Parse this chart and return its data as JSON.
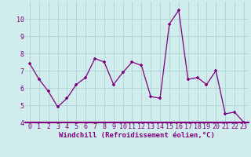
{
  "x": [
    0,
    1,
    2,
    3,
    4,
    5,
    6,
    7,
    8,
    9,
    10,
    11,
    12,
    13,
    14,
    15,
    16,
    17,
    18,
    19,
    20,
    21,
    22,
    23
  ],
  "y": [
    7.4,
    6.5,
    5.8,
    4.9,
    5.4,
    6.2,
    6.6,
    7.7,
    7.5,
    6.2,
    6.9,
    7.5,
    7.3,
    5.5,
    5.4,
    9.7,
    10.5,
    6.5,
    6.6,
    6.2,
    7.0,
    4.5,
    4.6,
    4.0
  ],
  "xlabel": "Windchill (Refroidissement éolien,°C)",
  "ylim": [
    4,
    11
  ],
  "yticks": [
    4,
    5,
    6,
    7,
    8,
    9,
    10
  ],
  "xticks": [
    0,
    1,
    2,
    3,
    4,
    5,
    6,
    7,
    8,
    9,
    10,
    11,
    12,
    13,
    14,
    15,
    16,
    17,
    18,
    19,
    20,
    21,
    22,
    23
  ],
  "line_color": "#800080",
  "marker": "+",
  "bg_color": "#d0ecec",
  "grid_color": "#b0d8d8",
  "spine_color": "#800080",
  "label_color": "#800080",
  "tick_fontsize": 6.0,
  "xlabel_fontsize": 6.5
}
